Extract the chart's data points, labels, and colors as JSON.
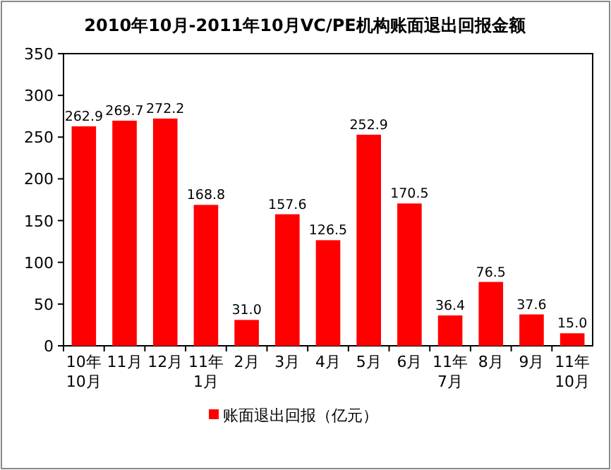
{
  "chart_data": {
    "type": "bar",
    "title": "2010年10月-2011年10月VC/PE机构账面退出回报金额",
    "categories": [
      "10年10月",
      "11月",
      "12月",
      "11年1月",
      "2月",
      "3月",
      "4月",
      "5月",
      "6月",
      "11年7月",
      "8月",
      "9月",
      "11年10月"
    ],
    "series": [
      {
        "name": "账面退出回报（亿元）",
        "color": "#ff0000",
        "values": [
          262.9,
          269.7,
          272.2,
          168.8,
          31.0,
          157.6,
          126.5,
          252.9,
          170.5,
          36.4,
          76.5,
          37.6,
          15.0
        ],
        "value_labels": [
          "262.9",
          "269.7",
          "272.2",
          "168.8",
          "31.0",
          "157.6",
          "126.5",
          "252.9",
          "170.5",
          "36.4",
          "76.5",
          "37.6",
          "15.0"
        ]
      }
    ],
    "ylim": [
      0,
      350
    ],
    "yticks": [
      0,
      50,
      100,
      150,
      200,
      250,
      300,
      350
    ],
    "grid": false,
    "legend": "bottom"
  }
}
